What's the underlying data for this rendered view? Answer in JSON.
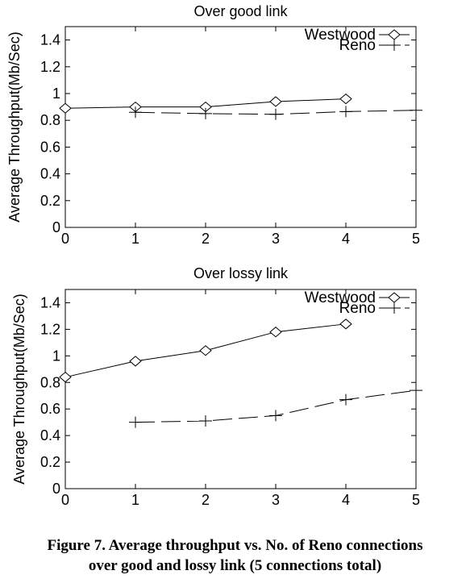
{
  "chart_data": [
    {
      "type": "line",
      "title": "Over good link",
      "xlabel": "",
      "ylabel": "Average Throughput(Mb/Sec)",
      "xlim": [
        0,
        5
      ],
      "ylim": [
        0,
        1.5
      ],
      "xticks": [
        0,
        1,
        2,
        3,
        4,
        5
      ],
      "yticks": [
        0,
        0.2,
        0.4,
        0.6,
        0.8,
        1,
        1.2,
        1.4
      ],
      "grid": false,
      "legend_position": "top-right",
      "series": [
        {
          "name": "Westwood",
          "style": "solid",
          "marker": "diamond",
          "x": [
            0,
            1,
            2,
            3,
            4
          ],
          "y": [
            0.89,
            0.9,
            0.9,
            0.94,
            0.96
          ]
        },
        {
          "name": "Reno",
          "style": "dashed",
          "marker": "plus",
          "x": [
            1,
            2,
            3,
            4,
            5
          ],
          "y": [
            0.86,
            0.85,
            0.845,
            0.865,
            0.875
          ]
        }
      ]
    },
    {
      "type": "line",
      "title": "Over lossy link",
      "xlabel": "",
      "ylabel": "Average Throughput(Mb/Sec)",
      "xlim": [
        0,
        5
      ],
      "ylim": [
        0,
        1.5
      ],
      "xticks": [
        0,
        1,
        2,
        3,
        4,
        5
      ],
      "yticks": [
        0,
        0.2,
        0.4,
        0.6,
        0.8,
        1,
        1.2,
        1.4
      ],
      "grid": false,
      "legend_position": "top-right",
      "series": [
        {
          "name": "Westwood",
          "style": "solid",
          "marker": "diamond",
          "x": [
            0,
            1,
            2,
            3,
            4
          ],
          "y": [
            0.84,
            0.96,
            1.04,
            1.18,
            1.24
          ]
        },
        {
          "name": "Reno",
          "style": "dashed",
          "marker": "plus",
          "x": [
            1,
            2,
            3,
            4,
            5
          ],
          "y": [
            0.5,
            0.51,
            0.55,
            0.67,
            0.74
          ]
        }
      ]
    }
  ],
  "caption": {
    "line1": "Figure 7. Average throughput vs. No. of Reno connections",
    "line2": "over good and lossy link (5 connections total)"
  }
}
